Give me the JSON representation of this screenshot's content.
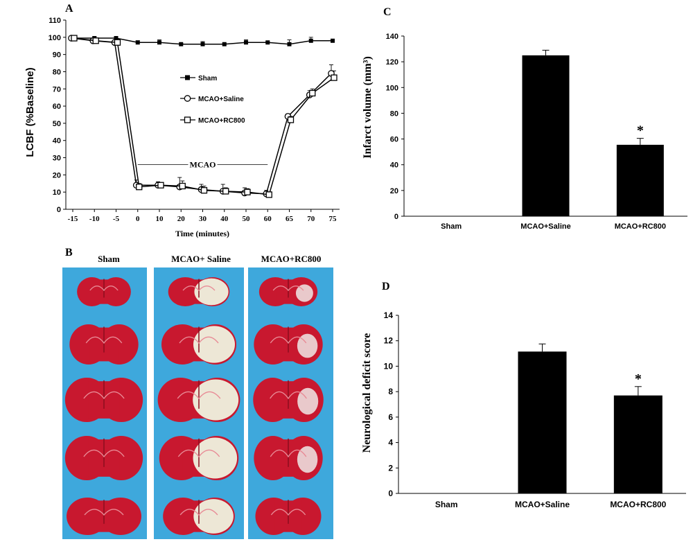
{
  "panels": {
    "A": {
      "letter": "A",
      "chart_data": {
        "type": "line",
        "x": [
          -15,
          -10,
          -5,
          0,
          10,
          20,
          30,
          40,
          50,
          60,
          65,
          70,
          75
        ],
        "x_ticks": [
          "-15",
          "-10",
          "-5",
          "0",
          "10",
          "20",
          "30",
          "40",
          "50",
          "60",
          "65",
          "70",
          "75"
        ],
        "y_ticks": [
          "0",
          "10",
          "20",
          "30",
          "40",
          "50",
          "60",
          "70",
          "80",
          "90",
          "100",
          "110"
        ],
        "ylim": [
          0,
          110
        ],
        "ylabel": "LCBF (%Baseline)",
        "xlabel": "Time (minutes)",
        "annotation": "MCAO",
        "annotation_range": [
          0,
          60
        ],
        "annotation_y": 26,
        "legend_position": "center",
        "series": [
          {
            "name": "Sham",
            "marker": "filled-square",
            "values": [
              99.5,
              99.5,
              99.5,
              97,
              97,
              96,
              96,
              96,
              97,
              97,
              96,
              98,
              98
            ],
            "errors": [
              0.5,
              1,
              1,
              1,
              1.5,
              0.5,
              1.5,
              0.5,
              1.5,
              0.5,
              2.5,
              2,
              0.5
            ]
          },
          {
            "name": "MCAO+Saline",
            "marker": "open-circle",
            "values": [
              99.5,
              98,
              97,
              14,
              14,
              13,
              11.5,
              10.5,
              9.5,
              9,
              54,
              66.5,
              79
            ],
            "errors": [
              0.5,
              1.5,
              1.5,
              3,
              2,
              5.5,
              3,
              4,
              3,
              2,
              1.5,
              2.5,
              5
            ]
          },
          {
            "name": "MCAO+RC800",
            "marker": "open-square",
            "values": [
              99.5,
              98,
              97,
              13,
              14,
              13.5,
              11,
              10.5,
              10,
              8.5,
              52,
              67.5,
              76.5
            ],
            "errors": [
              0.5,
              1.5,
              1.5,
              2,
              1.5,
              3,
              2.5,
              2,
              2,
              1.5,
              2,
              2.5,
              4
            ]
          }
        ]
      }
    },
    "B": {
      "letter": "B",
      "columns": [
        "Sham",
        "MCAO+ Saline",
        "MCAO+RC800"
      ],
      "section_count": 5,
      "background": "#3ea8dc"
    },
    "C": {
      "letter": "C",
      "chart_data": {
        "type": "bar",
        "categories": [
          "Sham",
          "MCAO+Saline",
          "MCAO+RC800"
        ],
        "values": [
          0,
          125,
          55.5
        ],
        "errors": [
          0,
          4,
          5
        ],
        "significance": [
          "",
          "",
          "*"
        ],
        "ylabel": "Infarct  volume (mm³)",
        "ylim": [
          0,
          140
        ],
        "y_ticks": [
          "0",
          "20",
          "40",
          "60",
          "80",
          "100",
          "120",
          "140"
        ]
      }
    },
    "D": {
      "letter": "D",
      "chart_data": {
        "type": "bar",
        "categories": [
          "Sham",
          "MCAO+Saline",
          "MCAO+RC800"
        ],
        "values": [
          0,
          11.15,
          7.7
        ],
        "errors": [
          0,
          0.6,
          0.7
        ],
        "significance": [
          "",
          "",
          "*"
        ],
        "ylabel": "Neurological deficit  score",
        "ylim": [
          0,
          14
        ],
        "y_ticks": [
          "0",
          "2",
          "4",
          "6",
          "8",
          "10",
          "12",
          "14"
        ]
      }
    }
  }
}
